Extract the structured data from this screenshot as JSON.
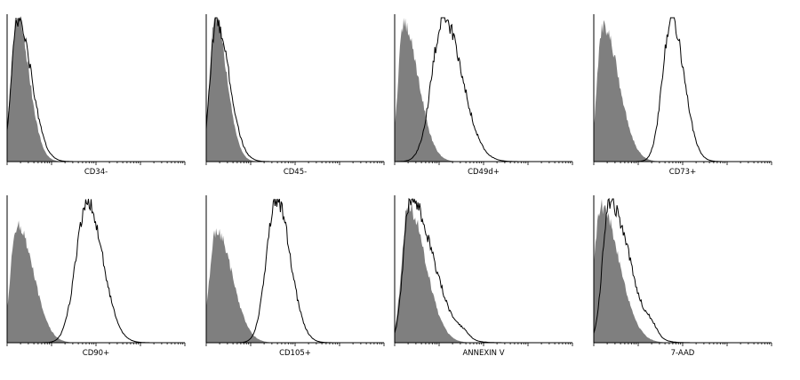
{
  "chart_data": [
    {
      "type": "area",
      "xlabel": "CD34-",
      "x_scale": "log",
      "series": [
        {
          "role": "isotype-control",
          "style": "filled-gray",
          "peak_decade": 0.22,
          "width": 0.13,
          "skew": 0.28,
          "height": 1.0
        },
        {
          "role": "stained",
          "style": "outline",
          "peak_decade": 0.24,
          "width": 0.14,
          "skew": 0.3,
          "height": 0.98
        }
      ]
    },
    {
      "type": "area",
      "xlabel": "CD45-",
      "x_scale": "log",
      "series": [
        {
          "role": "isotype-control",
          "style": "filled-gray",
          "peak_decade": 0.2,
          "width": 0.12,
          "skew": 0.3,
          "height": 1.0
        },
        {
          "role": "stained",
          "style": "outline",
          "peak_decade": 0.22,
          "width": 0.13,
          "skew": 0.32,
          "height": 0.98
        }
      ]
    },
    {
      "type": "area",
      "xlabel": "CD49d+",
      "x_scale": "log",
      "series": [
        {
          "role": "isotype-control",
          "style": "filled-gray",
          "peak_decade": 0.2,
          "width": 0.12,
          "skew": 0.45,
          "height": 0.95
        },
        {
          "role": "stained",
          "style": "outline",
          "peak_decade": 1.1,
          "width": 0.26,
          "skew": 0.15,
          "height": 1.0
        }
      ]
    },
    {
      "type": "area",
      "xlabel": "CD73+",
      "x_scale": "log",
      "series": [
        {
          "role": "isotype-control",
          "style": "filled-gray",
          "peak_decade": 0.2,
          "width": 0.12,
          "skew": 0.5,
          "height": 0.95
        },
        {
          "role": "stained",
          "style": "outline",
          "peak_decade": 1.75,
          "width": 0.2,
          "skew": 0.1,
          "height": 1.0
        }
      ]
    },
    {
      "type": "area",
      "xlabel": "CD90+",
      "x_scale": "log",
      "series": [
        {
          "role": "isotype-control",
          "style": "filled-gray",
          "peak_decade": 0.22,
          "width": 0.14,
          "skew": 0.4,
          "height": 0.82
        },
        {
          "role": "stained",
          "style": "outline",
          "peak_decade": 1.8,
          "width": 0.25,
          "skew": 0.1,
          "height": 0.98
        }
      ]
    },
    {
      "type": "area",
      "xlabel": "CD105+",
      "x_scale": "log",
      "series": [
        {
          "role": "isotype-control",
          "style": "filled-gray",
          "peak_decade": 0.22,
          "width": 0.14,
          "skew": 0.4,
          "height": 0.78
        },
        {
          "role": "stained",
          "style": "outline",
          "peak_decade": 1.58,
          "width": 0.22,
          "skew": 0.1,
          "height": 1.0
        }
      ]
    },
    {
      "type": "area",
      "xlabel": "ANNEXIN V",
      "x_scale": "log",
      "series": [
        {
          "role": "isotype-control",
          "style": "filled-gray",
          "peak_decade": 0.3,
          "width": 0.14,
          "skew": 0.45,
          "height": 0.95
        },
        {
          "role": "stained",
          "style": "outline",
          "peak_decade": 0.35,
          "width": 0.15,
          "skew": 0.6,
          "height": 1.0,
          "secondary_peak_decade": 1.55,
          "secondary_height": 0.04
        }
      ]
    },
    {
      "type": "area",
      "xlabel": "7-AAD",
      "x_scale": "log",
      "series": [
        {
          "role": "isotype-control",
          "style": "filled-gray",
          "peak_decade": 0.15,
          "width": 0.14,
          "skew": 0.5,
          "height": 0.95
        },
        {
          "role": "stained",
          "style": "outline",
          "peak_decade": 0.35,
          "width": 0.15,
          "skew": 0.5,
          "height": 0.98,
          "secondary_peak_decade": 1.3,
          "secondary_height": 0.06
        }
      ]
    }
  ],
  "colors": {
    "control_fill": "#7f7f7f",
    "stained_line": "#000000",
    "axis": "#000000"
  }
}
